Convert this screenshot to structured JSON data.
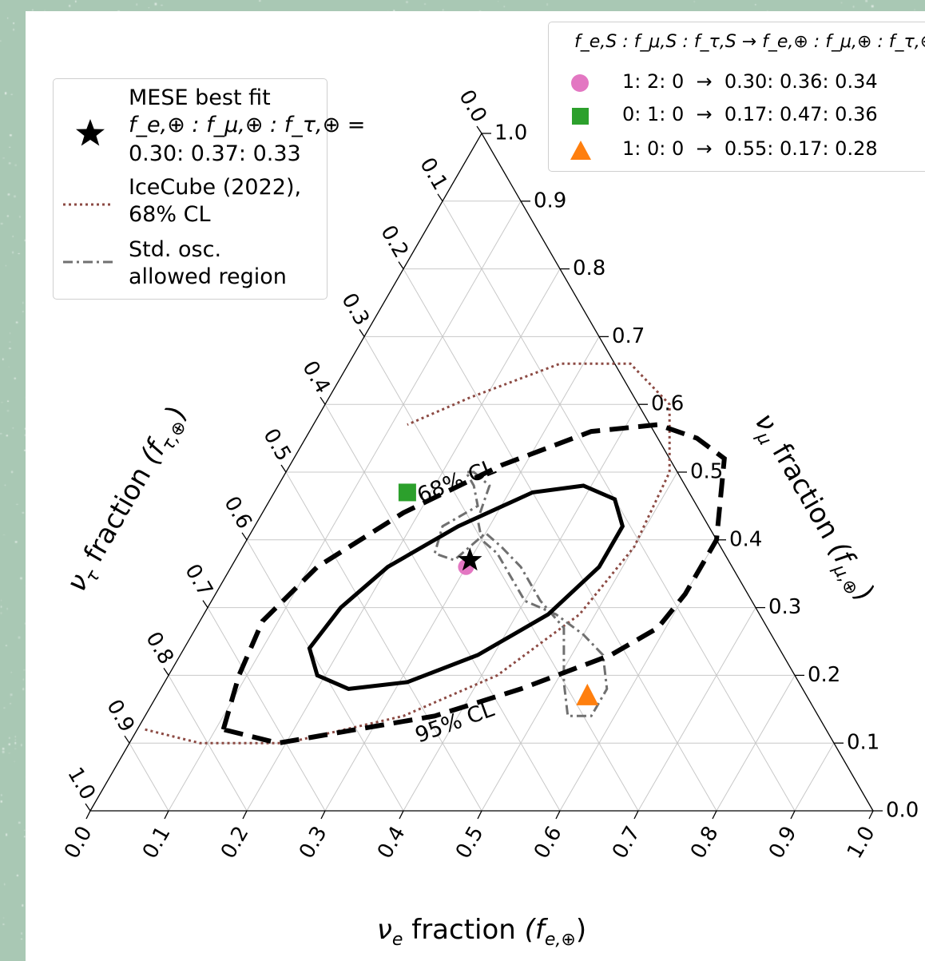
{
  "colors": {
    "background_outer": "#a9c8b4",
    "contour": "#000000",
    "icecube": "#8c4a43",
    "std_osc": "#707070",
    "pink": "#e377c2",
    "green": "#2ca02c",
    "orange": "#ff7f0e"
  },
  "chart_data": {
    "type": "ternary",
    "axes": {
      "bottom": {
        "label": "fraction",
        "symbol": "ν",
        "sub": "e",
        "paren": "(f",
        "paren_sub": "e,⊕",
        "paren_end": ")",
        "ticks": [
          "0.0",
          "0.1",
          "0.2",
          "0.3",
          "0.4",
          "0.5",
          "0.6",
          "0.7",
          "0.8",
          "0.9",
          "1.0"
        ]
      },
      "right": {
        "label": "fraction",
        "symbol": "ν",
        "sub": "μ",
        "paren": "(f",
        "paren_sub": "μ,⊕",
        "paren_end": ")",
        "ticks": [
          "0.0",
          "0.1",
          "0.2",
          "0.3",
          "0.4",
          "0.5",
          "0.6",
          "0.7",
          "0.8",
          "0.9",
          "1.0"
        ]
      },
      "left": {
        "label": "fraction",
        "symbol": "ν",
        "sub": "τ",
        "paren": "(f",
        "paren_sub": "τ,⊕",
        "paren_end": ")",
        "ticks": [
          "0.0",
          "0.1",
          "0.2",
          "0.3",
          "0.4",
          "0.5",
          "0.6",
          "0.7",
          "0.8",
          "0.9",
          "1.0"
        ]
      }
    },
    "grid": true,
    "best_fit": {
      "fe": 0.3,
      "fmu": 0.37,
      "ftau": 0.33
    },
    "contours": [
      {
        "label": "68% CL",
        "style": "solid",
        "points": [
          [
            0.17,
            0.3
          ],
          [
            0.16,
            0.24
          ],
          [
            0.19,
            0.2
          ],
          [
            0.24,
            0.18
          ],
          [
            0.31,
            0.19
          ],
          [
            0.38,
            0.23
          ],
          [
            0.44,
            0.29
          ],
          [
            0.47,
            0.36
          ],
          [
            0.47,
            0.42
          ],
          [
            0.44,
            0.46
          ],
          [
            0.39,
            0.48
          ],
          [
            0.33,
            0.47
          ],
          [
            0.26,
            0.42
          ],
          [
            0.2,
            0.36
          ],
          [
            0.17,
            0.3
          ]
        ]
      },
      {
        "label": "95% CL",
        "style": "dashed",
        "points": [
          [
            0.11,
            0.12
          ],
          [
            0.09,
            0.2
          ],
          [
            0.08,
            0.28
          ],
          [
            0.11,
            0.36
          ],
          [
            0.18,
            0.44
          ],
          [
            0.27,
            0.51
          ],
          [
            0.36,
            0.56
          ],
          [
            0.44,
            0.57
          ],
          [
            0.5,
            0.55
          ],
          [
            0.55,
            0.52
          ],
          [
            0.6,
            0.4
          ],
          [
            0.6,
            0.32
          ],
          [
            0.59,
            0.27
          ],
          [
            0.55,
            0.23
          ],
          [
            0.46,
            0.18
          ],
          [
            0.37,
            0.14
          ],
          [
            0.28,
            0.12
          ],
          [
            0.19,
            0.1
          ],
          [
            0.11,
            0.12
          ]
        ]
      }
    ],
    "icecube_2022": {
      "label": "IceCube (2022), 68% CL",
      "points": [
        [
          0.01,
          0.12
        ],
        [
          0.09,
          0.1
        ],
        [
          0.2,
          0.1
        ],
        [
          0.33,
          0.14
        ],
        [
          0.42,
          0.2
        ],
        [
          0.48,
          0.29
        ],
        [
          0.5,
          0.39
        ],
        [
          0.49,
          0.5
        ],
        [
          0.44,
          0.6
        ],
        [
          0.36,
          0.66
        ],
        [
          0.27,
          0.66
        ],
        [
          0.18,
          0.61
        ],
        [
          0.12,
          0.57
        ]
      ]
    },
    "std_osc_region": {
      "label": "Std. osc. allowed region",
      "points": [
        [
          0.24,
          0.5
        ],
        [
          0.27,
          0.48
        ],
        [
          0.28,
          0.43
        ],
        [
          0.3,
          0.4
        ],
        [
          0.33,
          0.38
        ],
        [
          0.36,
          0.35
        ],
        [
          0.4,
          0.31
        ],
        [
          0.45,
          0.29
        ],
        [
          0.5,
          0.26
        ],
        [
          0.54,
          0.23
        ],
        [
          0.57,
          0.18
        ],
        [
          0.57,
          0.14
        ],
        [
          0.54,
          0.14
        ],
        [
          0.51,
          0.19
        ],
        [
          0.47,
          0.27
        ],
        [
          0.42,
          0.31
        ],
        [
          0.37,
          0.36
        ],
        [
          0.33,
          0.39
        ],
        [
          0.3,
          0.41
        ],
        [
          0.28,
          0.37
        ],
        [
          0.25,
          0.38
        ],
        [
          0.24,
          0.42
        ],
        [
          0.27,
          0.45
        ],
        [
          0.25,
          0.48
        ],
        [
          0.23,
          0.5
        ],
        [
          0.24,
          0.5
        ]
      ]
    },
    "source_points": [
      {
        "marker": "circle",
        "color": "#e377c2",
        "fe": 0.3,
        "fmu": 0.36,
        "ftau": 0.34
      },
      {
        "marker": "square",
        "color": "#2ca02c",
        "fe": 0.17,
        "fmu": 0.47,
        "ftau": 0.36
      },
      {
        "marker": "triangle",
        "color": "#ff7f0e",
        "fe": 0.55,
        "fmu": 0.17,
        "ftau": 0.28
      }
    ],
    "contour_labels": [
      "68% CL",
      "95% CL"
    ]
  },
  "legend_left": {
    "best_fit_line1": "MESE best fit",
    "best_fit_formula": "f_e,⊕ : f_μ,⊕ : f_τ,⊕ =",
    "best_fit_values": "0.30: 0.37: 0.33",
    "icecube_line1": "IceCube (2022),",
    "icecube_line2": "68% CL",
    "std_line1": "Std. osc.",
    "std_line2": "allowed region"
  },
  "legend_right": {
    "header": "f_e,S : f_μ,S : f_τ,S → f_e,⊕ : f_μ,⊕ : f_τ,⊕",
    "rows": [
      "1: 2: 0  →  0.30: 0.36: 0.34",
      "0: 1: 0  →  0.17: 0.47: 0.36",
      "1: 0: 0  →  0.55: 0.17: 0.28"
    ]
  }
}
